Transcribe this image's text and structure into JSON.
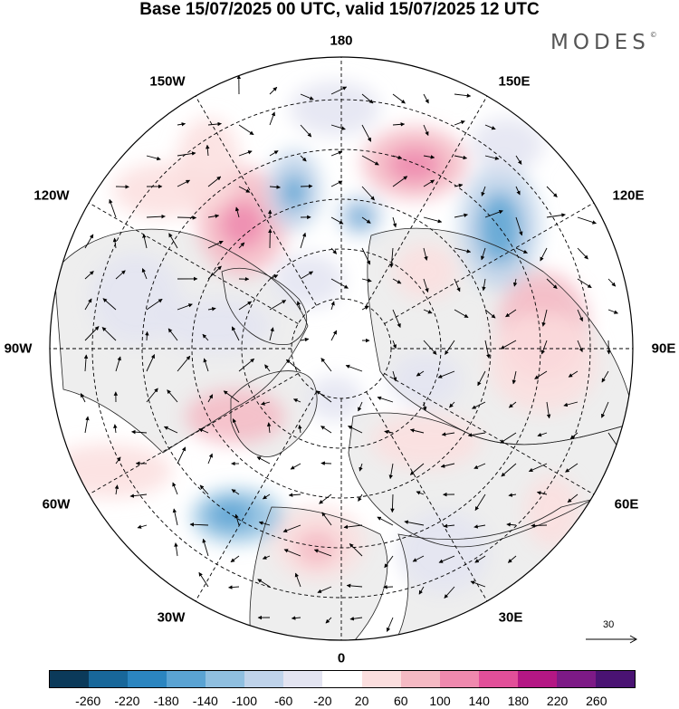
{
  "title": "Base 15/07/2025 00 UTC, valid 15/07/2025 12 UTC",
  "brand": "MODES",
  "brand_mark": "©",
  "longitude_labels": {
    "lon_180": "180",
    "lon_150W": "150W",
    "lon_150E": "150E",
    "lon_120W": "120W",
    "lon_120E": "120E",
    "lon_90W": "90W",
    "lon_90E": "90E",
    "lon_60W": "60W",
    "lon_60E": "60E",
    "lon_30W": "30W",
    "lon_30E": "30E",
    "lon_0": "0"
  },
  "vector_reference": {
    "value": "30"
  },
  "colorbar": {
    "bins": [
      "#0b3a5a",
      "#18679a",
      "#2b85c0",
      "#5aa3d3",
      "#8fbfe0",
      "#bfd3ea",
      "#e3e4f1",
      "#ffffff",
      "#fbdede",
      "#f5b9c3",
      "#ef89ae",
      "#e24f99",
      "#b41784",
      "#7d1a86",
      "#4a1373"
    ],
    "ticks": [
      "-260",
      "-220",
      "-180",
      "-140",
      "-100",
      "-60",
      "-20",
      "20",
      "60",
      "100",
      "140",
      "180",
      "220",
      "260"
    ]
  },
  "map_style": {
    "land_fill": "#eeeeee",
    "grid_color": "#000000",
    "coast_color": "#222222"
  }
}
